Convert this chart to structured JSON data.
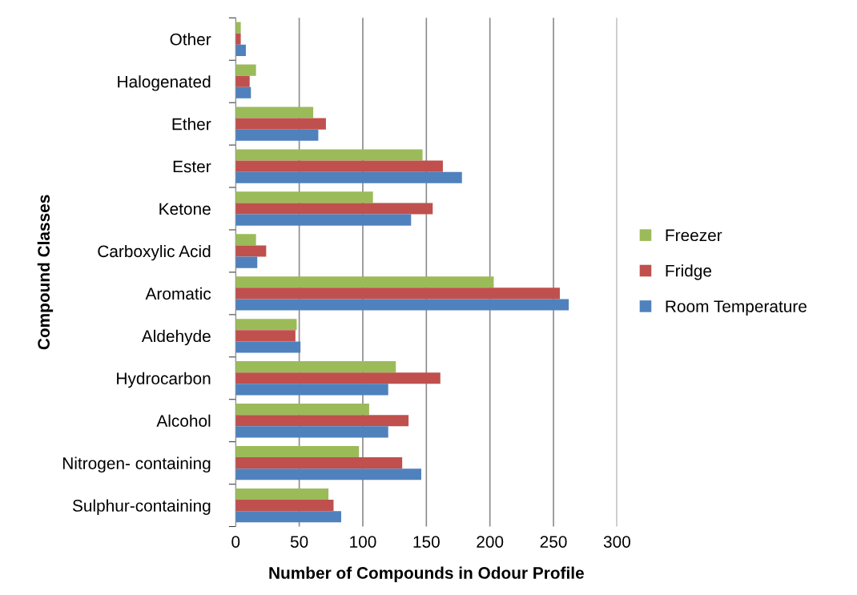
{
  "chart_data": {
    "type": "bar",
    "orientation": "horizontal",
    "xlabel": "Number of Compounds in Odour Profile",
    "ylabel": "Compound Classes",
    "categories": [
      "Other",
      "Halogenated",
      "Ether",
      "Ester",
      "Ketone",
      "Carboxylic Acid",
      "Aromatic",
      "Aldehyde",
      "Hydrocarbon",
      "Alcohol",
      "Nitrogen- containing",
      "Sulphur-containing"
    ],
    "series": [
      {
        "name": "Freezer",
        "color": "#9bbb59",
        "values": [
          4,
          16,
          61,
          147,
          108,
          16,
          203,
          48,
          126,
          105,
          97,
          73
        ]
      },
      {
        "name": "Fridge",
        "color": "#c0504d",
        "values": [
          4,
          11,
          71,
          163,
          155,
          24,
          255,
          47,
          161,
          136,
          131,
          77
        ]
      },
      {
        "name": "Room Temperature",
        "color": "#4f81bd",
        "values": [
          8,
          12,
          65,
          178,
          138,
          17,
          262,
          51,
          120,
          120,
          146,
          83
        ]
      }
    ],
    "xlim": [
      0,
      300
    ],
    "xticks": [
      0,
      50,
      100,
      150,
      200,
      250,
      300
    ],
    "grid": "x",
    "legend": "right"
  }
}
